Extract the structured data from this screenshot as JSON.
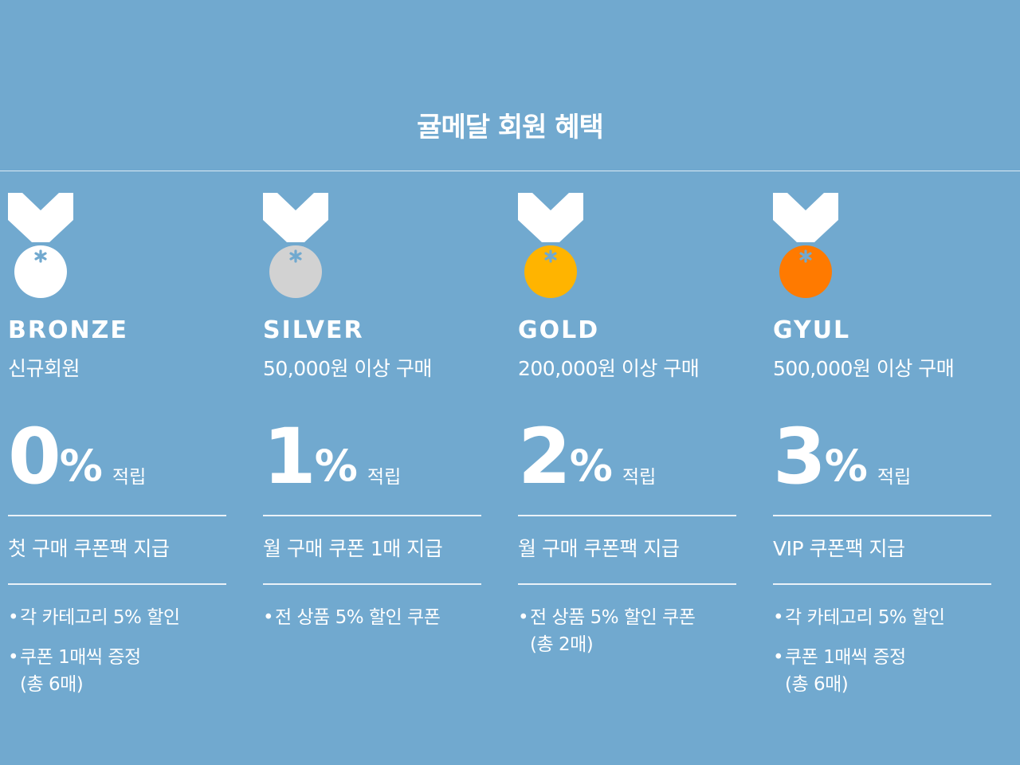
{
  "page": {
    "title": "귤메달 회원 혜택",
    "background": "#71a9cf"
  },
  "tiers": [
    {
      "name": "BRONZE",
      "condition": "신규회원",
      "rate_number": "0",
      "rate_percent": "%",
      "rate_label": "적립",
      "coupon": "첫 구매 쿠폰팩 지급",
      "benefits": [
        "각 카테고리 5% 할인",
        "쿠폰 1매씩 증정\n(총 6매)"
      ],
      "medal_color": "#ffffff",
      "ribbon_color": "#ffffff",
      "asterisk_color": "#71a9cf",
      "medal_icon": "bronze-medal-icon"
    },
    {
      "name": "SILVER",
      "condition": "50,000원 이상 구매",
      "rate_number": "1",
      "rate_percent": "%",
      "rate_label": "적립",
      "coupon": "월 구매 쿠폰 1매 지급",
      "benefits": [
        "전 상품 5% 할인 쿠폰"
      ],
      "medal_color": "#d2d2d2",
      "ribbon_color": "#ffffff",
      "asterisk_color": "#71a9cf",
      "medal_icon": "silver-medal-icon"
    },
    {
      "name": "GOLD",
      "condition": "200,000원 이상 구매",
      "rate_number": "2",
      "rate_percent": "%",
      "rate_label": "적립",
      "coupon": "월 구매 쿠폰팩 지급",
      "benefits": [
        "전 상품 5% 할인 쿠폰\n(총 2매)"
      ],
      "medal_color": "#ffb400",
      "ribbon_color": "#ffffff",
      "asterisk_color": "#71a9cf",
      "medal_icon": "gold-medal-icon"
    },
    {
      "name": "GYUL",
      "condition": "500,000원 이상 구매",
      "rate_number": "3",
      "rate_percent": "%",
      "rate_label": "적립",
      "coupon": "VIP 쿠폰팩 지급",
      "benefits": [
        "각 카테고리 5% 할인",
        "쿠폰 1매씩 증정\n(총 6매)"
      ],
      "medal_color": "#ff7a00",
      "ribbon_color": "#ffffff",
      "asterisk_color": "#71a9cf",
      "medal_icon": "gyul-medal-icon"
    }
  ]
}
